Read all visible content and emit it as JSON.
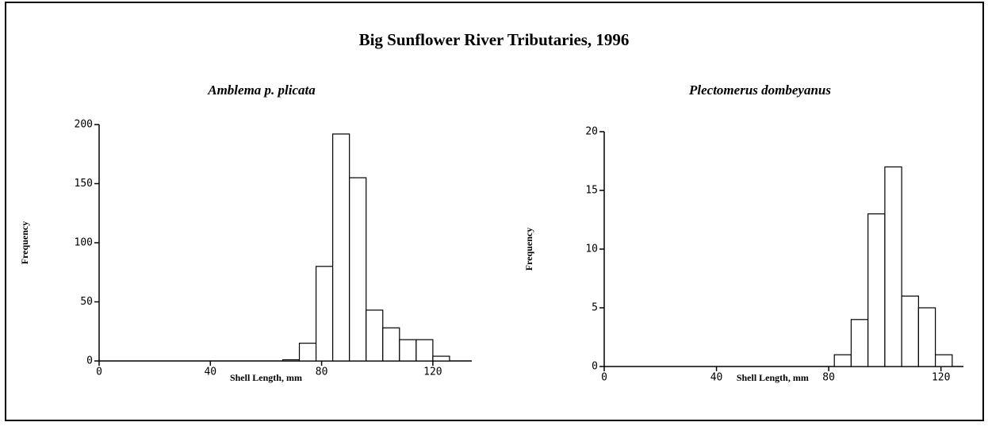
{
  "title": "Big Sunflower River Tributaries, 1996",
  "chart_data": [
    {
      "type": "histogram",
      "title": "Amblema p. plicata",
      "xlabel": "Shell Length, mm",
      "ylabel": "Frequency",
      "bins": [
        66,
        72,
        78,
        84,
        90,
        96,
        102,
        108,
        114,
        120,
        126
      ],
      "values": [
        1,
        15,
        80,
        192,
        155,
        43,
        28,
        18,
        18,
        4
      ],
      "xlim": [
        0,
        134
      ],
      "xticks": [
        0,
        40,
        80,
        120
      ],
      "ylim": [
        0,
        200
      ],
      "yticks": [
        0,
        50,
        100,
        150,
        200
      ],
      "color": "#ffffff"
    },
    {
      "type": "histogram",
      "title": "Plectomerus dombeyanus",
      "xlabel": "Shell Length, mm",
      "ylabel": "Frequency",
      "bins": [
        82,
        88,
        94,
        100,
        106,
        112,
        118,
        124
      ],
      "values": [
        1,
        4,
        13,
        17,
        6,
        5,
        1
      ],
      "xlim": [
        0,
        128
      ],
      "xticks": [
        0,
        40,
        80,
        120
      ],
      "ylim": [
        0,
        20
      ],
      "yticks": [
        0,
        5,
        10,
        15,
        20
      ],
      "color": "#ffffff"
    }
  ]
}
